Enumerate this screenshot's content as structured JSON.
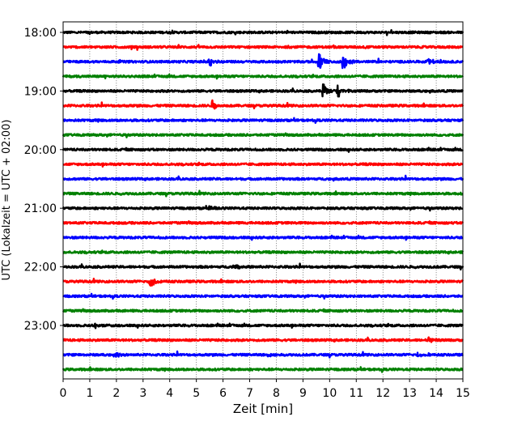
{
  "chart_data": {
    "type": "line",
    "title": "",
    "xlabel": "Zeit  [min]",
    "ylabel": "UTC (Lokalzeit = UTC + 02:00)",
    "xlim": [
      0,
      15
    ],
    "x_ticks": [
      0,
      1,
      2,
      3,
      4,
      5,
      6,
      7,
      8,
      9,
      10,
      11,
      12,
      13,
      14,
      15
    ],
    "x_tick_labels": [
      "0",
      "1",
      "2",
      "3",
      "4",
      "5",
      "6",
      "7",
      "8",
      "9",
      "10",
      "11",
      "12",
      "13",
      "14",
      "15"
    ],
    "y_tick_labels": [
      "18:00",
      "19:00",
      "20:00",
      "21:00",
      "22:00",
      "23:00"
    ],
    "grid": "vertical dotted at each minute",
    "trace_interval_min": 15,
    "color_cycle": [
      "#000000",
      "#ff0000",
      "#0000ff",
      "#008000"
    ],
    "series": [
      {
        "start": "18:00",
        "color": "#000000",
        "events": []
      },
      {
        "start": "18:15",
        "color": "#ff0000",
        "events": []
      },
      {
        "start": "18:30",
        "color": "#0000ff",
        "events": [
          {
            "t": 5.45,
            "amp": 0.45
          },
          {
            "t": 9.6,
            "amp": 0.9
          },
          {
            "t": 10.5,
            "amp": 0.75
          },
          {
            "t": 13.7,
            "amp": 0.25
          }
        ]
      },
      {
        "start": "18:45",
        "color": "#008000",
        "events": []
      },
      {
        "start": "19:00",
        "color": "#000000",
        "events": [
          {
            "t": 9.75,
            "amp": 0.55
          },
          {
            "t": 10.3,
            "amp": 0.55
          }
        ]
      },
      {
        "start": "19:15",
        "color": "#ff0000",
        "events": [
          {
            "t": 5.6,
            "amp": 0.35
          }
        ]
      },
      {
        "start": "19:30",
        "color": "#0000ff",
        "events": []
      },
      {
        "start": "19:45",
        "color": "#008000",
        "events": []
      },
      {
        "start": "20:00",
        "color": "#000000",
        "events": []
      },
      {
        "start": "20:15",
        "color": "#ff0000",
        "events": []
      },
      {
        "start": "20:30",
        "color": "#0000ff",
        "events": []
      },
      {
        "start": "20:45",
        "color": "#008000",
        "events": []
      },
      {
        "start": "21:00",
        "color": "#000000",
        "events": [
          {
            "t": 5.5,
            "amp": 0.2
          }
        ]
      },
      {
        "start": "21:15",
        "color": "#ff0000",
        "events": []
      },
      {
        "start": "21:30",
        "color": "#0000ff",
        "events": []
      },
      {
        "start": "21:45",
        "color": "#008000",
        "events": []
      },
      {
        "start": "22:00",
        "color": "#000000",
        "events": [
          {
            "t": 6.4,
            "amp": 0.2
          }
        ]
      },
      {
        "start": "22:15",
        "color": "#ff0000",
        "events": [
          {
            "t": 3.25,
            "amp": 0.55
          }
        ]
      },
      {
        "start": "22:30",
        "color": "#0000ff",
        "events": []
      },
      {
        "start": "22:45",
        "color": "#008000",
        "events": []
      },
      {
        "start": "23:00",
        "color": "#000000",
        "events": [
          {
            "t": 1.2,
            "amp": 0.2
          }
        ]
      },
      {
        "start": "23:15",
        "color": "#ff0000",
        "events": [
          {
            "t": 13.7,
            "amp": 0.2
          }
        ]
      },
      {
        "start": "23:30",
        "color": "#0000ff",
        "events": [
          {
            "t": 2.0,
            "amp": 0.15
          },
          {
            "t": 7.7,
            "amp": 0.15
          },
          {
            "t": 13.3,
            "amp": 0.12
          }
        ]
      },
      {
        "start": "23:45",
        "color": "#008000",
        "events": []
      }
    ]
  }
}
